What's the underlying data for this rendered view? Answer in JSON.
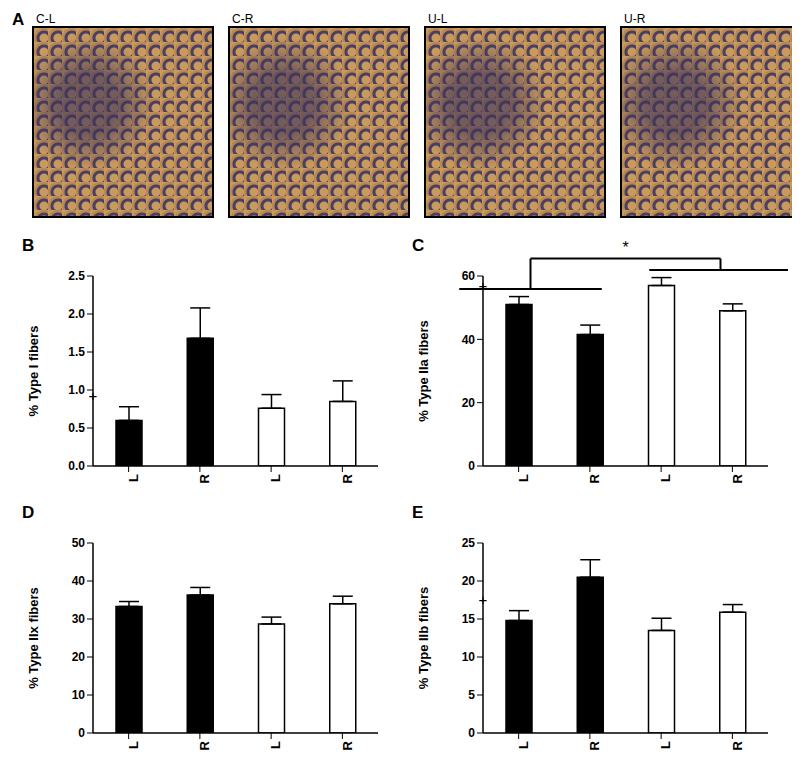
{
  "panel_a": {
    "label": "A",
    "images": [
      "C-L",
      "C-R",
      "U-L",
      "U-R"
    ]
  },
  "chart_data": [
    {
      "type": "bar",
      "title": "B",
      "y_label": "% Type I fibers",
      "categories": [
        "L",
        "R",
        "L",
        "R"
      ],
      "values": [
        0.6,
        1.68,
        0.76,
        0.85
      ],
      "errors": [
        0.18,
        0.4,
        0.18,
        0.27
      ],
      "colors": [
        "#000000",
        "#000000",
        "#ffffff",
        "#ffffff"
      ],
      "ylim": [
        0,
        2.5
      ],
      "yticks": [
        {
          "value": 0,
          "label": "0.0"
        },
        {
          "value": 0.5,
          "label": "0.5"
        },
        {
          "value": 1,
          "label": "1.0"
        },
        {
          "value": 1.5,
          "label": "1.5"
        },
        {
          "value": 2,
          "label": "2.0"
        },
        {
          "value": 2.5,
          "label": "2.5"
        }
      ],
      "annotations": [
        {
          "text": "+",
          "index": 0
        }
      ]
    },
    {
      "type": "bar",
      "title": "C",
      "y_label": "% Type IIa fibers",
      "categories": [
        "L",
        "R",
        "L",
        "R"
      ],
      "values": [
        51,
        41.5,
        57,
        49
      ],
      "errors": [
        2.5,
        3,
        2.5,
        2.2
      ],
      "colors": [
        "#000000",
        "#000000",
        "#ffffff",
        "#ffffff"
      ],
      "ylim": [
        0,
        60
      ],
      "yticks": [
        0,
        20,
        40,
        60
      ],
      "annotations": [
        {
          "text": "+",
          "index": 0
        },
        {
          "text": "*",
          "groups": [
            [
              0,
              1
            ],
            [
              2,
              3
            ]
          ]
        }
      ]
    },
    {
      "type": "bar",
      "title": "D",
      "y_label": "% Type IIx fibers",
      "categories": [
        "L",
        "R",
        "L",
        "R"
      ],
      "values": [
        33.3,
        36.3,
        28.7,
        34
      ],
      "errors": [
        1.3,
        2,
        1.8,
        2
      ],
      "colors": [
        "#000000",
        "#000000",
        "#ffffff",
        "#ffffff"
      ],
      "ylim": [
        0,
        50
      ],
      "yticks": [
        0,
        10,
        20,
        30,
        40,
        50
      ],
      "annotations": []
    },
    {
      "type": "bar",
      "title": "E",
      "y_label": "% Type IIb fibers",
      "categories": [
        "L",
        "R",
        "L",
        "R"
      ],
      "values": [
        14.8,
        20.5,
        13.5,
        15.9
      ],
      "errors": [
        1.3,
        2.3,
        1.6,
        1
      ],
      "colors": [
        "#000000",
        "#000000",
        "#ffffff",
        "#ffffff"
      ],
      "ylim": [
        0,
        25
      ],
      "yticks": [
        0,
        5,
        10,
        15,
        20,
        25
      ],
      "annotations": [
        {
          "text": "+",
          "index": 0
        }
      ]
    }
  ]
}
